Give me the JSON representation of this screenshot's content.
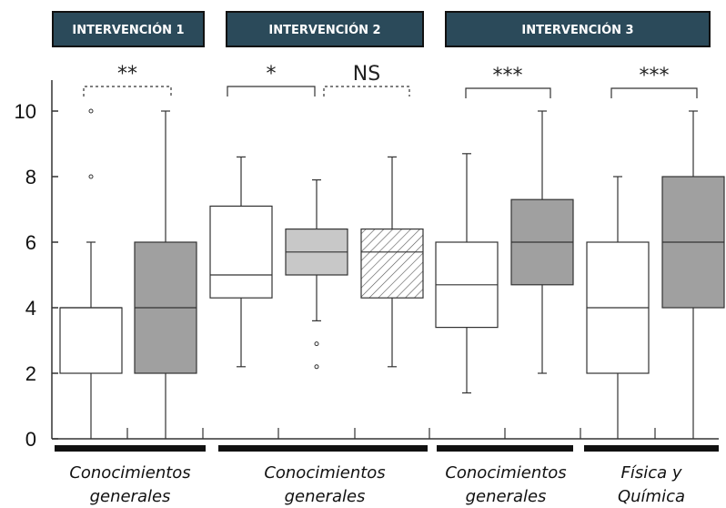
{
  "chart_data": {
    "type": "boxplot",
    "ylim": [
      0,
      11
    ],
    "yticks": [
      0,
      2,
      4,
      6,
      8,
      10
    ],
    "colors": {
      "header_bg": "#2b4a5a",
      "white_box": "#ffffff",
      "light_gray_box": "#c8c8c8",
      "dark_gray_box": "#a0a0a0",
      "hatched_box": "#ffffff",
      "line": "#333333"
    },
    "interventions": [
      {
        "label": "INTERVENCIÓN 1"
      },
      {
        "label": "INTERVENCIÓN 2"
      },
      {
        "label": "INTERVENCIÓN 3"
      }
    ],
    "groups": [
      {
        "label": [
          "Conocimientos",
          "generales"
        ]
      },
      {
        "label": [
          "Conocimientos",
          "generales"
        ]
      },
      {
        "label": [
          "Conocimientos",
          "generales"
        ]
      },
      {
        "label": [
          "Física y",
          "Química"
        ]
      }
    ],
    "boxes": [
      {
        "fill": "white",
        "whisker_low": 0,
        "q1": 2,
        "median": 4,
        "q3": 4,
        "whisker_high": 6,
        "outliers": [
          8,
          10
        ]
      },
      {
        "fill": "dark_gray",
        "whisker_low": 0,
        "q1": 2,
        "median": 4,
        "q3": 6,
        "whisker_high": 10,
        "outliers": []
      },
      {
        "fill": "white",
        "whisker_low": 2.2,
        "q1": 4.3,
        "median": 5.0,
        "q3": 7.1,
        "whisker_high": 8.6,
        "outliers": []
      },
      {
        "fill": "light_gray",
        "whisker_low": 3.6,
        "q1": 5.0,
        "median": 5.7,
        "q3": 6.4,
        "whisker_high": 7.9,
        "outliers": [
          2.9,
          2.2
        ]
      },
      {
        "fill": "hatched",
        "whisker_low": 2.2,
        "q1": 4.3,
        "median": 5.7,
        "q3": 6.4,
        "whisker_high": 8.6,
        "outliers": []
      },
      {
        "fill": "white",
        "whisker_low": 1.4,
        "q1": 3.4,
        "median": 4.7,
        "q3": 6.0,
        "whisker_high": 8.7,
        "outliers": []
      },
      {
        "fill": "dark_gray",
        "whisker_low": 2,
        "q1": 4.7,
        "median": 6.0,
        "q3": 7.3,
        "whisker_high": 10,
        "outliers": []
      },
      {
        "fill": "white",
        "whisker_low": 0,
        "q1": 2,
        "median": 4,
        "q3": 6,
        "whisker_high": 8,
        "outliers": []
      },
      {
        "fill": "dark_gray",
        "whisker_low": 0,
        "q1": 4,
        "median": 6,
        "q3": 8,
        "whisker_high": 10,
        "outliers": []
      }
    ],
    "comparisons": [
      {
        "label": "**",
        "style": "dashed"
      },
      {
        "label": "*",
        "style": "solid"
      },
      {
        "label": "NS",
        "style": "dashed"
      },
      {
        "label": "***",
        "style": "solid"
      },
      {
        "label": "***",
        "style": "solid"
      }
    ]
  }
}
